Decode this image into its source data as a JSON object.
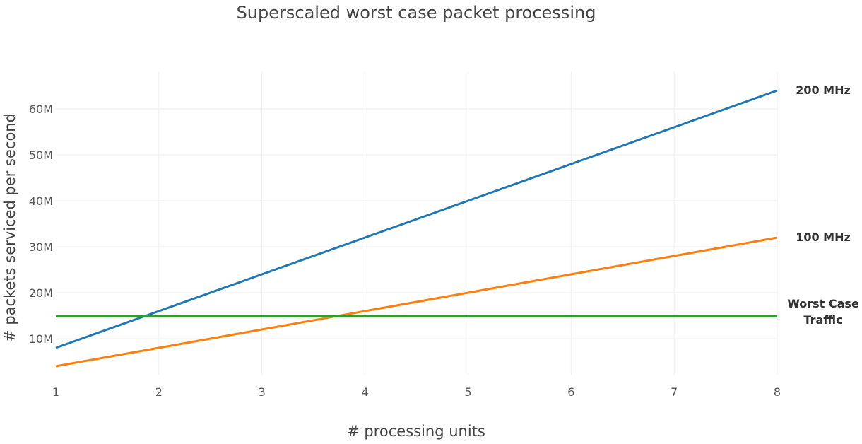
{
  "chart_data": {
    "type": "line",
    "title": "Superscaled worst case packet processing",
    "xlabel": "# processing units",
    "ylabel": "# packets serviced per second",
    "xlim": [
      1,
      8
    ],
    "ylim": [
      0,
      68000000
    ],
    "x_ticks": [
      1,
      2,
      3,
      4,
      5,
      6,
      7,
      8
    ],
    "x_tick_labels": [
      "1",
      "2",
      "3",
      "4",
      "5",
      "6",
      "7",
      "8"
    ],
    "y_ticks": [
      10000000,
      20000000,
      30000000,
      40000000,
      50000000,
      60000000
    ],
    "y_tick_labels": [
      "10M",
      "20M",
      "30M",
      "40M",
      "50M",
      "60M"
    ],
    "grid": true,
    "legend": "none (series labeled at line ends)",
    "series": [
      {
        "name": "200 MHz",
        "label_lines": [
          "200 MHz"
        ],
        "color": "#1f77b4",
        "x": [
          1,
          2,
          3,
          4,
          5,
          6,
          7,
          8
        ],
        "y": [
          8000000,
          16000000,
          24000000,
          32000000,
          40000000,
          48000000,
          56000000,
          64000000
        ]
      },
      {
        "name": "100 MHz",
        "label_lines": [
          "100 MHz"
        ],
        "color": "#ff7f0e",
        "x": [
          1,
          2,
          3,
          4,
          5,
          6,
          7,
          8
        ],
        "y": [
          4000000,
          8000000,
          12000000,
          16000000,
          20000000,
          24000000,
          28000000,
          32000000
        ]
      },
      {
        "name": "Worst Case Traffic",
        "label_lines": [
          "Worst Case",
          "Traffic"
        ],
        "color": "#2ca02c",
        "x": [
          1,
          8
        ],
        "y": [
          14880000,
          14880000
        ]
      }
    ]
  }
}
